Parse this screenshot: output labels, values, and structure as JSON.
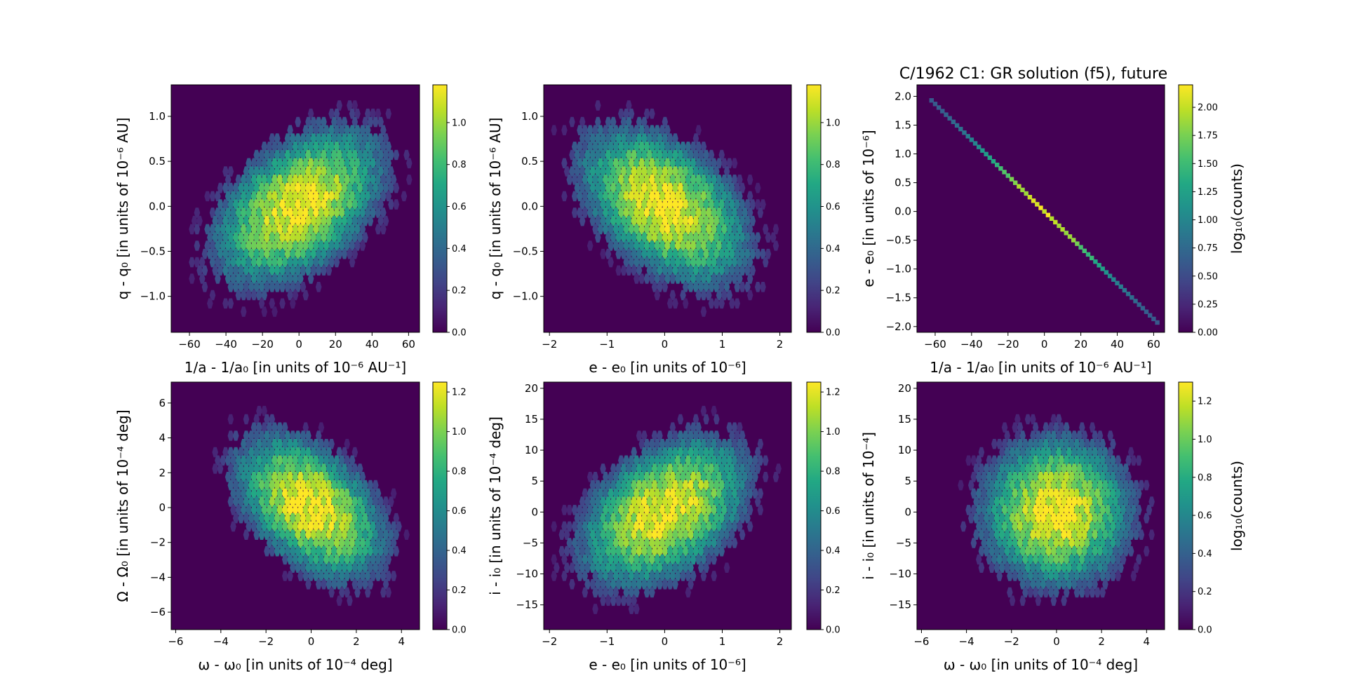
{
  "figure": {
    "title": "C/1962 C1: GR solution (f5), future"
  },
  "chart_data": [
    {
      "type": "heatmap",
      "variant": "hexbin",
      "title": "",
      "xlabel": "1/a - 1/a₀ [in units of 10⁻⁶ AU⁻¹]",
      "ylabel": "q - q₀ [in units of 10⁻⁶ AU]",
      "colorbar_label": "",
      "xlim": [
        -70,
        66
      ],
      "ylim": [
        -1.4,
        1.35
      ],
      "xticks": [
        -60,
        -40,
        -20,
        0,
        20,
        40,
        60
      ],
      "yticks": [
        -1.0,
        -0.5,
        0.0,
        0.5,
        1.0
      ],
      "ytick_labels": [
        "−1.0",
        "−0.5",
        "0.0",
        "0.5",
        "1.0"
      ],
      "clim": [
        0,
        1.18
      ],
      "cbar_ticks": [
        0.0,
        0.2,
        0.4,
        0.6,
        0.8,
        1.0
      ],
      "distribution": {
        "center": [
          0,
          0
        ],
        "sigma": [
          22,
          0.42
        ],
        "correlation": 0.45
      }
    },
    {
      "type": "heatmap",
      "variant": "hexbin",
      "title": "",
      "xlabel": "e - e₀ [in units of 10⁻⁶]",
      "ylabel": "q - q₀ [in units of 10⁻⁶ AU]",
      "colorbar_label": "",
      "xlim": [
        -2.1,
        2.2
      ],
      "ylim": [
        -1.4,
        1.35
      ],
      "xticks": [
        -2,
        -1,
        0,
        1,
        2
      ],
      "yticks": [
        -1.0,
        -0.5,
        0.0,
        0.5,
        1.0
      ],
      "ytick_labels": [
        "−1.0",
        "−0.5",
        "0.0",
        "0.5",
        "1.0"
      ],
      "clim": [
        0,
        1.18
      ],
      "cbar_ticks": [
        0.0,
        0.2,
        0.4,
        0.6,
        0.8,
        1.0
      ],
      "distribution": {
        "center": [
          0,
          0
        ],
        "sigma": [
          0.7,
          0.42
        ],
        "correlation": -0.45
      }
    },
    {
      "type": "heatmap",
      "variant": "hexbin",
      "title": "",
      "xlabel": "1/a - 1/a₀ [in units of 10⁻⁶ AU⁻¹]",
      "ylabel": "e - e₀ [in units of 10⁻⁶]",
      "colorbar_label": "log₁₀(counts)",
      "xlim": [
        -70,
        66
      ],
      "ylim": [
        -2.1,
        2.2
      ],
      "xticks": [
        -60,
        -40,
        -20,
        0,
        20,
        40,
        60
      ],
      "yticks": [
        -2.0,
        -1.5,
        -1.0,
        -0.5,
        0.0,
        0.5,
        1.0,
        1.5,
        2.0
      ],
      "ytick_labels": [
        "−2.0",
        "−1.5",
        "−1.0",
        "−0.5",
        "0.0",
        "0.5",
        "1.0",
        "1.5",
        "2.0"
      ],
      "clim": [
        0,
        2.2
      ],
      "cbar_ticks": [
        0.0,
        0.25,
        0.5,
        0.75,
        1.0,
        1.25,
        1.5,
        1.75,
        2.0
      ],
      "distribution": {
        "center": [
          0,
          0
        ],
        "sigma": [
          22,
          0.7
        ],
        "correlation": -1.0,
        "line": {
          "from": [
            -62,
            1.93
          ],
          "to": [
            62,
            -1.93
          ]
        }
      }
    },
    {
      "type": "heatmap",
      "variant": "hexbin",
      "title": "",
      "xlabel": "ω - ω₀ [in units of 10⁻⁴ deg]",
      "ylabel": "Ω - Ω₀ [in units of 10⁻⁴ deg]",
      "colorbar_label": "",
      "xlim": [
        -6.2,
        4.8
      ],
      "ylim": [
        -7,
        7.2
      ],
      "xticks": [
        -6,
        -4,
        -2,
        0,
        2,
        4
      ],
      "yticks": [
        -6,
        -4,
        -2,
        0,
        2,
        4,
        6
      ],
      "ytick_labels": [
        "−6",
        "−4",
        "−2",
        "0",
        "2",
        "4",
        "6"
      ],
      "clim": [
        0,
        1.25
      ],
      "cbar_ticks": [
        0.0,
        0.2,
        0.4,
        0.6,
        0.8,
        1.0,
        1.2
      ],
      "distribution": {
        "center": [
          0,
          0
        ],
        "sigma": [
          1.6,
          2.0
        ],
        "correlation": -0.45
      }
    },
    {
      "type": "heatmap",
      "variant": "hexbin",
      "title": "",
      "xlabel": "e - e₀ [in units of 10⁻⁶]",
      "ylabel": "i - i₀ [in units of 10⁻⁴ deg]",
      "colorbar_label": "",
      "xlim": [
        -2.1,
        2.2
      ],
      "ylim": [
        -19,
        21
      ],
      "xticks": [
        -2,
        -1,
        0,
        1,
        2
      ],
      "yticks": [
        -15,
        -10,
        -5,
        0,
        5,
        10,
        15,
        20
      ],
      "ytick_labels": [
        "−15",
        "−10",
        "−5",
        "0",
        "5",
        "10",
        "15",
        "20"
      ],
      "clim": [
        0,
        1.25
      ],
      "cbar_ticks": [
        0.0,
        0.2,
        0.4,
        0.6,
        0.8,
        1.0,
        1.2
      ],
      "distribution": {
        "center": [
          0,
          0
        ],
        "sigma": [
          0.7,
          5.8
        ],
        "correlation": 0.4
      }
    },
    {
      "type": "heatmap",
      "variant": "hexbin",
      "title": "",
      "xlabel": "ω - ω₀ [in units of 10⁻⁴ deg]",
      "ylabel": "i - i₀ [in units of 10⁻⁴]",
      "colorbar_label": "log₁₀(counts)",
      "xlim": [
        -6.2,
        4.8
      ],
      "ylim": [
        -19,
        21
      ],
      "xticks": [
        -6,
        -4,
        -2,
        0,
        2,
        4
      ],
      "yticks": [
        -15,
        -10,
        -5,
        0,
        5,
        10,
        15,
        20
      ],
      "ytick_labels": [
        "−15",
        "−10",
        "−5",
        "0",
        "5",
        "10",
        "15",
        "20"
      ],
      "clim": [
        0,
        1.3
      ],
      "cbar_ticks": [
        0.0,
        0.2,
        0.4,
        0.6,
        0.8,
        1.0,
        1.2
      ],
      "distribution": {
        "center": [
          0,
          0
        ],
        "sigma": [
          1.6,
          5.8
        ],
        "correlation": 0.0
      }
    }
  ]
}
